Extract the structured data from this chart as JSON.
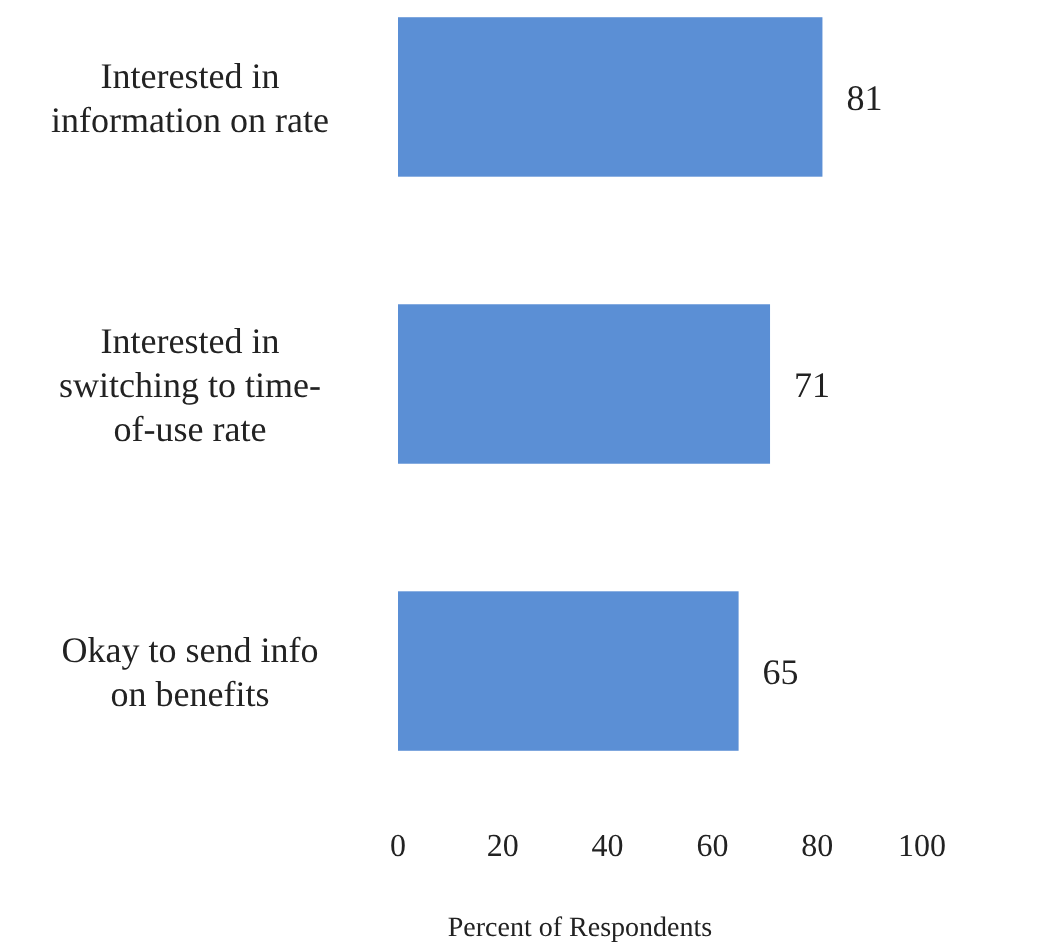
{
  "chart_data": {
    "type": "bar",
    "orientation": "horizontal",
    "xlabel": "Percent of Respondents",
    "categories": [
      "Interested in information on rate",
      "Interested in switching to time-of-use rate",
      "Okay to send info on benefits"
    ],
    "values": [
      81,
      71,
      65
    ],
    "color": "#5b8fd5",
    "xlim": [
      0,
      100
    ],
    "xticks": [
      0,
      20,
      40,
      60,
      80,
      100
    ],
    "data_labels": true
  }
}
